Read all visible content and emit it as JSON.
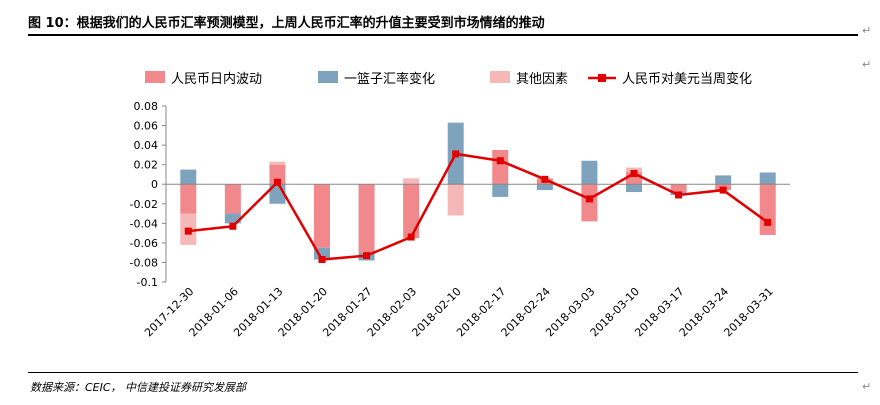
{
  "header": {
    "title": "图 10：根据我们的人民币汇率预测模型，上周人民币汇率的升值主要受到市场情绪的推动"
  },
  "footer": {
    "source": "数据来源：CEIC，  中信建投证券研究发展部"
  },
  "colors": {
    "intraday": "#f0888c",
    "basket": "#7fa3bd",
    "other": "#f6b7b7",
    "weekly": "#e00000"
  },
  "chart_data": {
    "type": "bar",
    "stacked": true,
    "title": "",
    "categories": [
      "2017-12-30",
      "2018-01-06",
      "2018-01-13",
      "2018-01-20",
      "2018-01-27",
      "2018-02-03",
      "2018-02-10",
      "2018-02-17",
      "2018-02-24",
      "2018-03-03",
      "2018-03-10",
      "2018-03-17",
      "2018-03-24",
      "2018-03-31"
    ],
    "ylim": [
      -0.1,
      0.08
    ],
    "yticks": [
      "0.08",
      "0.06",
      "0.04",
      "0.02",
      "0",
      "-0.02",
      "-0.04",
      "-0.06",
      "-0.08",
      "-0.1"
    ],
    "legend_position": "top",
    "series": [
      {
        "name": "人民币日内波动",
        "kind": "bar",
        "color_key": "intraday",
        "values": [
          -0.03,
          -0.03,
          0.02,
          -0.065,
          -0.07,
          -0.055,
          0.0,
          0.035,
          0.006,
          -0.038,
          0.012,
          -0.008,
          -0.006,
          -0.052
        ]
      },
      {
        "name": "一篮子汇率变化",
        "kind": "bar",
        "color_key": "basket",
        "values": [
          0.015,
          -0.01,
          -0.02,
          -0.012,
          -0.008,
          0.0,
          0.063,
          -0.013,
          -0.006,
          0.024,
          -0.008,
          -0.003,
          0.009,
          0.012
        ]
      },
      {
        "name": "其他因素",
        "kind": "bar",
        "color_key": "other",
        "values": [
          -0.032,
          0.0,
          0.003,
          0.0,
          0.0,
          0.006,
          -0.032,
          0.0,
          0.0,
          0.0,
          0.005,
          0.0,
          0.0,
          0.0
        ]
      },
      {
        "name": "人民币对美元当周变化",
        "kind": "line",
        "color_key": "weekly",
        "values": [
          -0.048,
          -0.043,
          0.002,
          -0.077,
          -0.073,
          -0.054,
          0.031,
          0.024,
          0.005,
          -0.015,
          0.011,
          -0.011,
          -0.006,
          -0.039
        ]
      }
    ]
  }
}
